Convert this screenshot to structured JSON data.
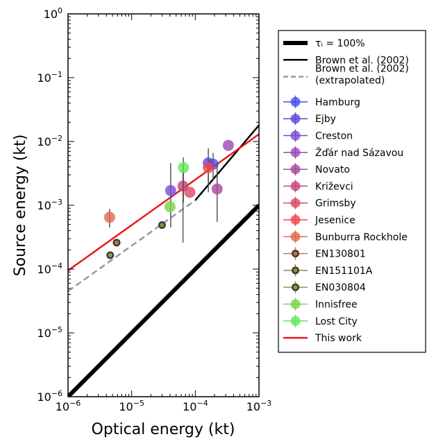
{
  "chart_data": {
    "type": "scatter",
    "xlabel": "Optical energy (kt)",
    "ylabel": "Source energy (kt)",
    "xscale": "log",
    "yscale": "log",
    "xlim": [
      1e-06,
      0.001
    ],
    "ylim": [
      1e-06,
      1
    ],
    "grid": false,
    "legend_position": "right-outside",
    "x_ticks": [
      {
        "base": "10",
        "exp": "−6",
        "value": 1e-06
      },
      {
        "base": "10",
        "exp": "−5",
        "value": 1e-05
      },
      {
        "base": "10",
        "exp": "−4",
        "value": 0.0001
      },
      {
        "base": "10",
        "exp": "−3",
        "value": 0.001
      }
    ],
    "y_ticks": [
      {
        "base": "10",
        "exp": "−6",
        "value": 1e-06
      },
      {
        "base": "10",
        "exp": "−5",
        "value": 1e-05
      },
      {
        "base": "10",
        "exp": "−4",
        "value": 0.0001
      },
      {
        "base": "10",
        "exp": "−3",
        "value": 0.001
      },
      {
        "base": "10",
        "exp": "−2",
        "value": 0.01
      },
      {
        "base": "10",
        "exp": "−1",
        "value": 0.1
      },
      {
        "base": "10",
        "exp": "0",
        "value": 1
      }
    ],
    "lines": [
      {
        "name": "τᵢ = 100%",
        "color": "#000000",
        "style": "solid",
        "width": 6,
        "points": [
          [
            1e-06,
            1e-06
          ],
          [
            0.001,
            0.001
          ]
        ]
      },
      {
        "name": "Brown et al. (2002)",
        "color": "#000000",
        "style": "solid",
        "width": 2.5,
        "points": [
          [
            0.0001,
            0.0012
          ],
          [
            0.001,
            0.018
          ]
        ]
      },
      {
        "name": "Brown et al. (2002)\n(extrapolated)",
        "color": "#999999",
        "style": "dashed",
        "width": 2.5,
        "points": [
          [
            1e-06,
            4.5e-05
          ],
          [
            0.0001,
            0.0012
          ]
        ]
      },
      {
        "name": "This work",
        "color": "#e8191b",
        "style": "solid",
        "width": 2.5,
        "points": [
          [
            1e-06,
            9.5e-05
          ],
          [
            0.001,
            0.013
          ]
        ]
      }
    ],
    "points": [
      {
        "name": "Hamburg",
        "color": "#4a4bf0",
        "marker": "filled",
        "x": 0.00016,
        "y": 0.0046,
        "yerr": [
          0.0016,
          0.0078
        ]
      },
      {
        "name": "Ejby",
        "color": "#5a4ae0",
        "marker": "filled",
        "x": 0.00019,
        "y": 0.0044,
        "yerr": [
          0.0025,
          0.0066
        ]
      },
      {
        "name": "Creston",
        "color": "#7a4ad6",
        "marker": "filled",
        "x": 4.1e-05,
        "y": 0.0017,
        "yerr": [
          0.00045,
          0.0046
        ]
      },
      {
        "name": "Žďár nad Sázavou",
        "color": "#9a4ab4",
        "marker": "filled",
        "x": 0.00033,
        "y": 0.0087,
        "yerr": null
      },
      {
        "name": "Novato",
        "color": "#a8479a",
        "marker": "filled",
        "x": 0.00022,
        "y": 0.0018,
        "yerr": [
          0.00055,
          0.0044
        ]
      },
      {
        "name": "Križevci",
        "color": "#c4457c",
        "marker": "filled",
        "x": 6.4e-05,
        "y": 0.002,
        "yerr": [
          0.00026,
          0.0042
        ]
      },
      {
        "name": "Grimsby",
        "color": "#de4663",
        "marker": "filled",
        "x": 8.2e-05,
        "y": 0.0016,
        "yerr": null
      },
      {
        "name": "Jesenice",
        "color": "#f24545",
        "marker": "filled",
        "x": 0.00016,
        "y": 0.0039,
        "yerr": [
          0.0023,
          0.0052
        ]
      },
      {
        "name": "Bunburra Rockhole",
        "color": "#e4684a",
        "marker": "filled",
        "x": 4.5e-06,
        "y": 0.00065,
        "yerr": [
          0.00045,
          0.00088
        ]
      },
      {
        "name": "EN130801",
        "color": "#c8733a",
        "marker": "ring",
        "x": 5.8e-06,
        "y": 0.00026,
        "yerr": null
      },
      {
        "name": "EN151101A",
        "color": "#9b8a3a",
        "marker": "ring",
        "x": 3e-05,
        "y": 0.00049,
        "yerr": null
      },
      {
        "name": "EN030804",
        "color": "#8aa23a",
        "marker": "ring",
        "x": 4.6e-06,
        "y": 0.000165,
        "yerr": null
      },
      {
        "name": "Innisfree",
        "color": "#7bd34a",
        "marker": "filled",
        "x": 4e-05,
        "y": 0.00095,
        "yerr": null
      },
      {
        "name": "Lost City",
        "color": "#5ee85a",
        "marker": "filled",
        "x": 6.5e-05,
        "y": 0.0039,
        "yerr": [
          0.0011,
          0.0056
        ]
      }
    ],
    "legend": [
      {
        "label": "τᵢ = 100%",
        "kind": "line",
        "color": "#000000",
        "width": 6,
        "style": "solid"
      },
      {
        "label": "Brown et al. (2002)",
        "kind": "line",
        "color": "#000000",
        "width": 2.5,
        "style": "solid"
      },
      {
        "label": "Brown et al. (2002)",
        "label2": " (extrapolated)",
        "kind": "line",
        "color": "#999999",
        "width": 2.5,
        "style": "dashed"
      },
      {
        "label": "Hamburg",
        "kind": "marker",
        "color": "#4a4bf0",
        "marker": "filled"
      },
      {
        "label": "Ejby",
        "kind": "marker",
        "color": "#5a4ae0",
        "marker": "filled"
      },
      {
        "label": "Creston",
        "kind": "marker",
        "color": "#7a4ad6",
        "marker": "filled"
      },
      {
        "label": "Žďár nad Sázavou",
        "kind": "marker",
        "color": "#9a4ab4",
        "marker": "filled"
      },
      {
        "label": "Novato",
        "kind": "marker",
        "color": "#a8479a",
        "marker": "filled"
      },
      {
        "label": "Križevci",
        "kind": "marker",
        "color": "#c4457c",
        "marker": "filled"
      },
      {
        "label": "Grimsby",
        "kind": "marker",
        "color": "#de4663",
        "marker": "filled"
      },
      {
        "label": "Jesenice",
        "kind": "marker",
        "color": "#f24545",
        "marker": "filled"
      },
      {
        "label": "Bunburra Rockhole",
        "kind": "marker",
        "color": "#e4684a",
        "marker": "filled"
      },
      {
        "label": "EN130801",
        "kind": "marker",
        "color": "#c8733a",
        "marker": "ring"
      },
      {
        "label": "EN151101A",
        "kind": "marker",
        "color": "#9b8a3a",
        "marker": "ring"
      },
      {
        "label": "EN030804",
        "kind": "marker",
        "color": "#8aa23a",
        "marker": "ring"
      },
      {
        "label": "Innisfree",
        "kind": "marker",
        "color": "#7bd34a",
        "marker": "filled"
      },
      {
        "label": "Lost City",
        "kind": "marker",
        "color": "#5ee85a",
        "marker": "filled"
      },
      {
        "label": "This work",
        "kind": "line",
        "color": "#e8191b",
        "width": 2.5,
        "style": "solid"
      }
    ]
  }
}
